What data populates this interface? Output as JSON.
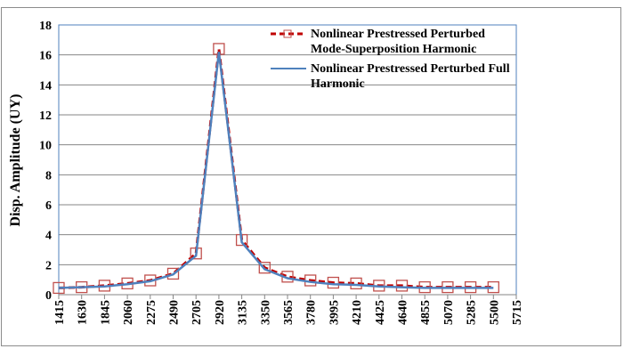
{
  "chart_data": {
    "type": "line",
    "title": "",
    "xlabel": "",
    "ylabel": "Disp. Amplitude (UY)",
    "x_tick_labels": [
      "1415",
      "1630",
      "1845",
      "2060",
      "2275",
      "2490",
      "2705",
      "2920",
      "3135",
      "3350",
      "3565",
      "3780",
      "3995",
      "4210",
      "4425",
      "4640",
      "4855",
      "5070",
      "5285",
      "5500",
      "5715"
    ],
    "y_tick_labels": [
      "0",
      "2",
      "4",
      "6",
      "8",
      "10",
      "12",
      "14",
      "16",
      "18"
    ],
    "ylim": [
      0,
      18
    ],
    "xlim": [
      1415,
      5715
    ],
    "grid": "horizontal",
    "legend_position": "top-right",
    "x": [
      1415,
      1630,
      1845,
      2060,
      2275,
      2490,
      2705,
      2920,
      3135,
      3350,
      3565,
      3780,
      3995,
      4210,
      4425,
      4640,
      4855,
      5070,
      5285,
      5500
    ],
    "series": [
      {
        "name": "Nonlinear Prestressed Perturbed Mode-Superposition Harmonic",
        "line1": "Nonlinear Prestressed Perturbed",
        "line2": "Mode-Superposition Harmonic",
        "color": "#C00000",
        "style": "dashed",
        "marker": "square",
        "values": [
          0.45,
          0.5,
          0.6,
          0.75,
          0.95,
          1.4,
          2.75,
          16.4,
          3.65,
          1.8,
          1.2,
          0.95,
          0.8,
          0.75,
          0.6,
          0.6,
          0.5,
          0.5,
          0.5,
          0.5
        ]
      },
      {
        "name": "Nonlinear Prestressed Perturbed Full Harmonic",
        "line1": "Nonlinear Prestressed Perturbed Full",
        "line2": "Harmonic",
        "color": "#4F81BD",
        "style": "solid",
        "marker": "none",
        "values": [
          0.45,
          0.5,
          0.55,
          0.7,
          0.9,
          1.35,
          2.6,
          16.2,
          3.5,
          1.7,
          1.1,
          0.85,
          0.7,
          0.65,
          0.55,
          0.5,
          0.45,
          0.45,
          0.45,
          0.45
        ]
      }
    ]
  }
}
